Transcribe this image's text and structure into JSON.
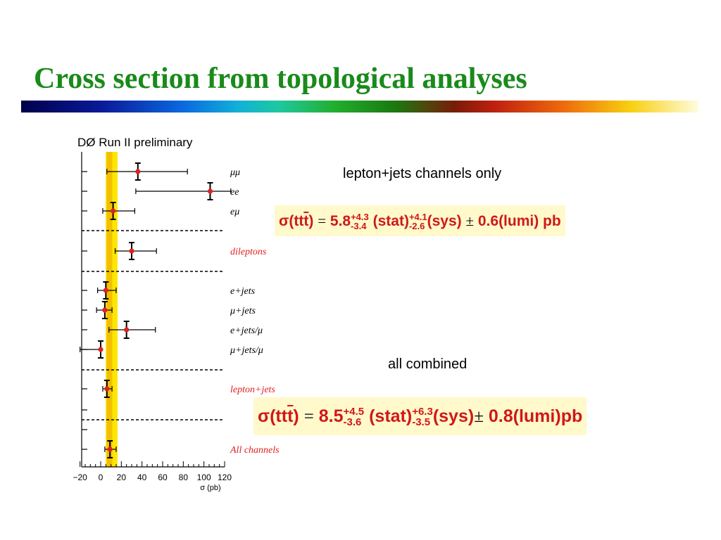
{
  "slide": {
    "title": "Cross section from topological analyses",
    "note_ljets": "lepton+jets channels only",
    "note_all": "all combined"
  },
  "formula1": {
    "sigma": "σ(tt",
    "tbar": "̄",
    "close": ")",
    "eq": "=",
    "value": "5.8",
    "stat_up": "+4.3",
    "stat_dn": "-3.4",
    "stat": "(stat)",
    "sys_up": "+4.1",
    "sys_dn": "-2.6",
    "sys": "(sys)",
    "pm": "±",
    "lumi": "0.6(lumi) pb"
  },
  "formula2": {
    "sigma": "σ(tt",
    "close": ")",
    "eq": "=",
    "value": "8.5",
    "stat_up": "+4.5",
    "stat_dn": "-3.6",
    "stat": "(stat)",
    "sys_up": "+6.3",
    "sys_dn": "-3.5",
    "sys": "(sys)",
    "pm": "±",
    "lumi": "0.8(lumi)",
    "unit": "pb"
  },
  "chart_data": {
    "type": "scatter",
    "title": "DØ Run II preliminary",
    "xlabel": "σ (pb)",
    "xlim": [
      -20,
      120
    ],
    "xticks": [
      -20,
      0,
      20,
      40,
      60,
      80,
      100,
      120
    ],
    "xtick_labels": [
      "−20",
      "0",
      "20",
      "40",
      "60",
      "80",
      "100",
      "120"
    ],
    "grid": false,
    "band": {
      "center": 8.5,
      "low": 4.9,
      "high": 16.3,
      "color": "#ffe600"
    },
    "colors": {
      "marker": "#e02020",
      "label_red": "#e02020",
      "label_black": "#000000"
    },
    "rows": [
      {
        "label": "μμ",
        "value": 36,
        "stat_lo": 31,
        "stat_hi": 41,
        "tot_lo": 6,
        "tot_hi": 84,
        "label_color": "black"
      },
      {
        "label": "ee",
        "value": 106,
        "stat_lo": 102,
        "stat_hi": 110,
        "tot_lo": 34,
        "tot_hi": 126,
        "label_color": "black"
      },
      {
        "label": "eμ",
        "value": 12,
        "stat_lo": 8,
        "stat_hi": 16,
        "tot_lo": 2,
        "tot_hi": 33,
        "label_color": "black"
      },
      {
        "label": "dileptons",
        "value": 30,
        "stat_lo": 26,
        "stat_hi": 34,
        "tot_lo": 14,
        "tot_hi": 54,
        "label_color": "red"
      },
      {
        "label": "e+jets",
        "value": 5,
        "stat_lo": 3,
        "stat_hi": 7,
        "tot_lo": -3,
        "tot_hi": 15,
        "label_color": "black"
      },
      {
        "label": "μ+jets",
        "value": 4,
        "stat_lo": 2,
        "stat_hi": 6,
        "tot_lo": -4,
        "tot_hi": 11,
        "label_color": "black"
      },
      {
        "label": "e+jets/μ",
        "value": 25,
        "stat_lo": 22,
        "stat_hi": 28,
        "tot_lo": 8,
        "tot_hi": 53,
        "label_color": "black"
      },
      {
        "label": "μ+jets/μ",
        "value": 0,
        "stat_lo": -2,
        "stat_hi": 2,
        "tot_lo": -20,
        "tot_hi": 0,
        "label_color": "black"
      },
      {
        "label": "lepton+jets",
        "value": 6,
        "stat_lo": 3,
        "stat_hi": 9,
        "tot_lo": 2,
        "tot_hi": 11,
        "label_color": "red"
      },
      {
        "label": "",
        "value": null,
        "label_color": "black"
      },
      {
        "label": "",
        "value": null,
        "label_color": "black"
      },
      {
        "label": "All channels",
        "value": 9,
        "stat_lo": 6,
        "stat_hi": 11,
        "tot_lo": 4,
        "tot_hi": 15,
        "label_color": "red"
      }
    ]
  }
}
